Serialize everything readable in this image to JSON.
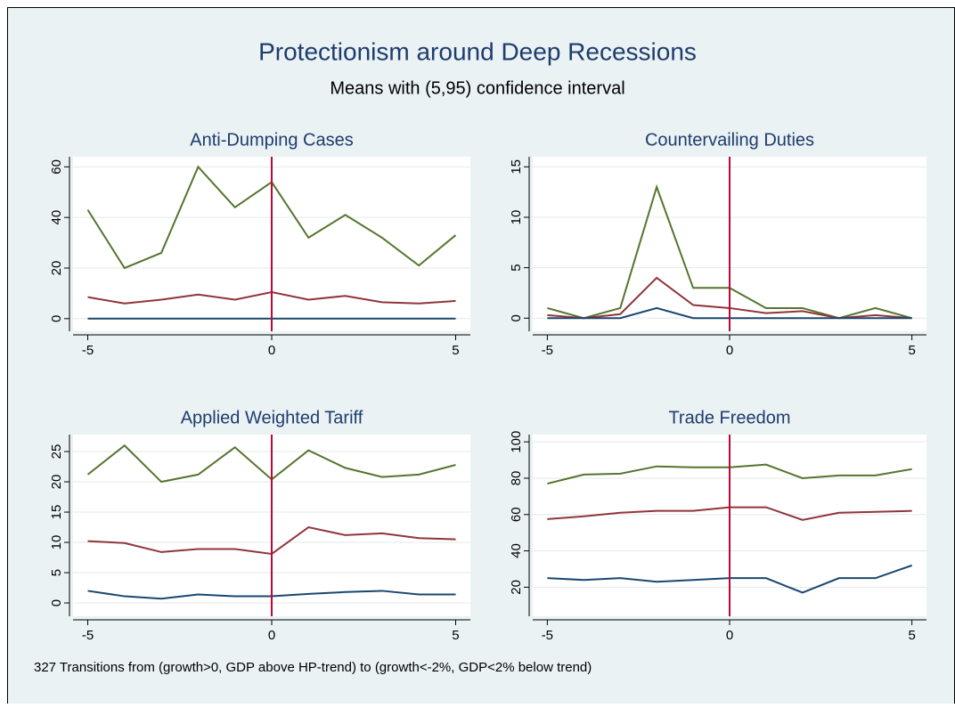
{
  "title": "Protectionism around Deep Recessions",
  "subtitle": "Means with (5,95) confidence interval",
  "note": "327 Transitions from (growth>0, GDP above HP-trend) to (growth<-2%, GDP<2% below trend)",
  "chart_data": [
    {
      "type": "line",
      "title": "Anti-Dumping Cases",
      "x": [
        -5,
        -4,
        -3,
        -2,
        -1,
        0,
        1,
        2,
        3,
        4,
        5
      ],
      "xlim": [
        -5.4,
        5.4
      ],
      "xticks": [
        -5,
        0,
        5
      ],
      "ylim": [
        -5,
        64
      ],
      "yticks": [
        0,
        20,
        40,
        60
      ],
      "grid": true,
      "xline": 0,
      "xline_color": "#c10534",
      "series": [
        {
          "color": "#55752f",
          "values": [
            43,
            20,
            26,
            60,
            44,
            54,
            32,
            41,
            32,
            21,
            33
          ]
        },
        {
          "color": "#90353b",
          "values": [
            8.5,
            6,
            7.5,
            9.5,
            7.5,
            10.5,
            7.5,
            9,
            6.5,
            6,
            7
          ]
        },
        {
          "color": "#1a476f",
          "values": [
            0,
            0,
            0,
            0,
            0,
            0,
            0,
            0,
            0,
            0,
            0
          ]
        }
      ]
    },
    {
      "type": "line",
      "title": "Countervailing Duties",
      "x": [
        -5,
        -4,
        -3,
        -2,
        -1,
        0,
        1,
        2,
        3,
        4,
        5
      ],
      "xlim": [
        -5.4,
        5.4
      ],
      "xticks": [
        -5,
        0,
        5
      ],
      "ylim": [
        -1.3,
        16
      ],
      "yticks": [
        0,
        5,
        10,
        15
      ],
      "grid": true,
      "xline": 0,
      "xline_color": "#c10534",
      "series": [
        {
          "color": "#55752f",
          "values": [
            1,
            0,
            1,
            13,
            3,
            3,
            1,
            1,
            0,
            1,
            0
          ]
        },
        {
          "color": "#90353b",
          "values": [
            0.3,
            0,
            0.4,
            4,
            1.3,
            1,
            0.5,
            0.7,
            0,
            0.3,
            0
          ]
        },
        {
          "color": "#1a476f",
          "values": [
            0,
            0,
            0,
            1,
            0,
            0,
            0,
            0,
            0,
            0,
            0
          ]
        }
      ]
    },
    {
      "type": "line",
      "title": "Applied Weighted Tariff",
      "x": [
        -5,
        -4,
        -3,
        -2,
        -1,
        0,
        1,
        2,
        3,
        4,
        5
      ],
      "xlim": [
        -5.4,
        5.4
      ],
      "xticks": [
        -5,
        0,
        5
      ],
      "ylim": [
        -2.2,
        27.8
      ],
      "yticks": [
        0,
        5,
        10,
        15,
        20,
        25
      ],
      "grid": true,
      "xline": 0,
      "xline_color": "#c10534",
      "series": [
        {
          "color": "#55752f",
          "values": [
            21.2,
            26,
            20,
            21.2,
            25.7,
            20.4,
            25.2,
            22.3,
            20.8,
            21.2,
            22.8
          ]
        },
        {
          "color": "#90353b",
          "values": [
            10.2,
            9.9,
            8.4,
            8.9,
            8.9,
            8.1,
            12.5,
            11.2,
            11.5,
            10.7,
            10.5
          ]
        },
        {
          "color": "#1a476f",
          "values": [
            2,
            1.1,
            0.7,
            1.4,
            1.1,
            1.1,
            1.5,
            1.8,
            2,
            1.4,
            1.4
          ]
        }
      ]
    },
    {
      "type": "line",
      "title": "Trade Freedom",
      "x": [
        -5,
        -4,
        -3,
        -2,
        -1,
        0,
        1,
        2,
        3,
        4,
        5
      ],
      "xlim": [
        -5.4,
        5.4
      ],
      "xticks": [
        -5,
        0,
        5
      ],
      "ylim": [
        4,
        104
      ],
      "yticks": [
        20,
        40,
        60,
        80,
        100
      ],
      "grid": true,
      "xline": 0,
      "xline_color": "#c10534",
      "series": [
        {
          "color": "#55752f",
          "values": [
            77,
            82,
            82.5,
            86.5,
            86,
            86,
            87.5,
            80,
            81.5,
            81.5,
            85
          ]
        },
        {
          "color": "#90353b",
          "values": [
            57.5,
            59,
            61,
            62,
            62,
            64,
            64,
            57,
            61,
            61.5,
            62
          ]
        },
        {
          "color": "#1a476f",
          "values": [
            25,
            24,
            25,
            23,
            24,
            25,
            25,
            17,
            25,
            25,
            32
          ]
        }
      ]
    }
  ]
}
